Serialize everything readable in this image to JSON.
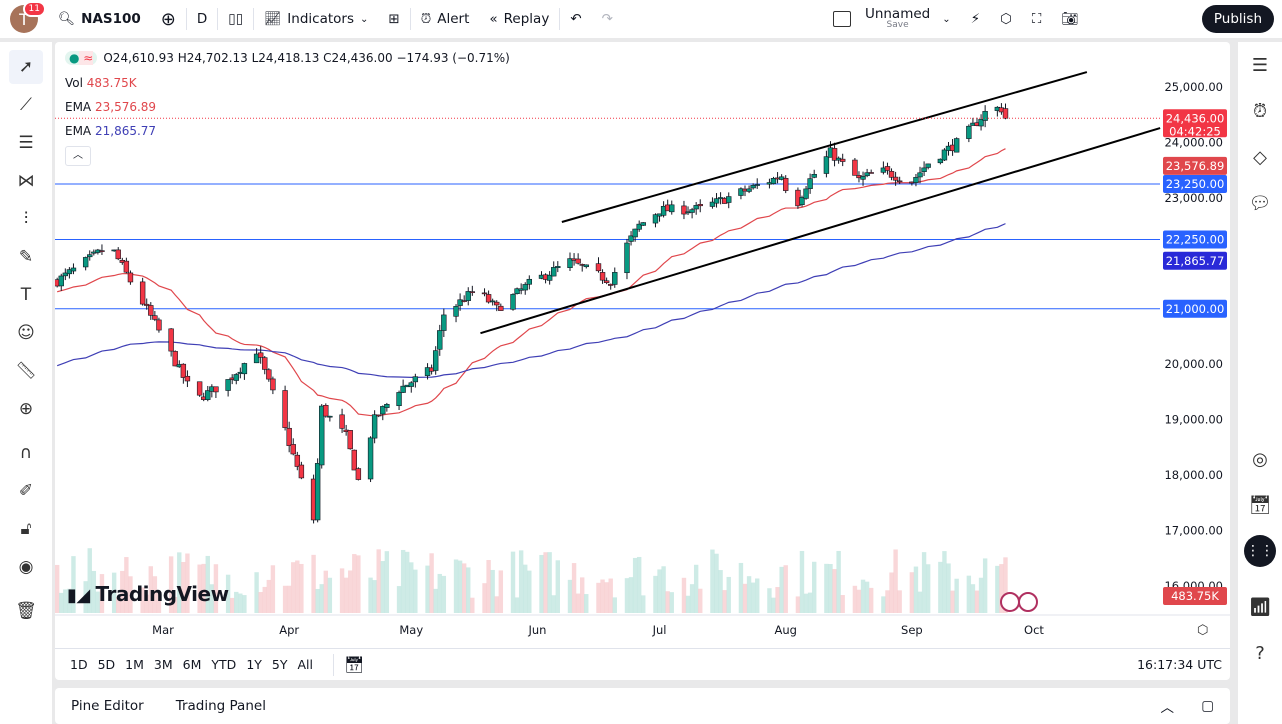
{
  "topbar": {
    "avatar_letter": "T",
    "notifications": "11",
    "symbol": "NAS100",
    "interval": "D",
    "indicators": "Indicators",
    "alert": "Alert",
    "replay": "Replay",
    "layout_name": "Unnamed",
    "layout_save": "Save",
    "publish": "Publish"
  },
  "legend": {
    "ohlc": "O24,610.93 H24,702.13 L24,418.13 C24,436.00 −174.93 (−0.71%)",
    "vol_label": "Vol",
    "vol_value": "483.75K",
    "ema1_label": "EMA",
    "ema1_value": "23,576.89",
    "ema2_label": "EMA",
    "ema2_value": "21,865.77"
  },
  "price_axis": {
    "ticks": [
      "25,000.00",
      "24,000.00",
      "23,000.00",
      "20,000.00",
      "19,000.00",
      "18,000.00",
      "17,000.00",
      "16,000.00"
    ],
    "labels": {
      "last_price": "24,436.00",
      "countdown": "04:42:25",
      "ema1": "23,576.89",
      "line1": "23,250.00",
      "line2": "22,250.00",
      "ema2": "21,865.77",
      "line3": "21,000.00",
      "volume": "483.75K"
    }
  },
  "time_axis": {
    "ticks": [
      "Mar",
      "Apr",
      "May",
      "Jun",
      "Jul",
      "Aug",
      "Sep",
      "Oct"
    ]
  },
  "range_bar": {
    "ranges": [
      "1D",
      "5D",
      "1M",
      "3M",
      "6M",
      "YTD",
      "1Y",
      "5Y",
      "All"
    ],
    "clock": "16:17:34 UTC"
  },
  "bottom_panel": {
    "pine_editor": "Pine Editor",
    "trading_panel": "Trading Panel"
  },
  "watermark": "TradingView",
  "colors": {
    "up": "#089981",
    "down": "#f23645",
    "ema1": "#e0474c",
    "ema2": "#3f3fb5",
    "hline": "#2962ff"
  },
  "chart_data": {
    "type": "candlestick",
    "price_range": [
      16000,
      25000
    ],
    "close_path": [
      [
        "2025-02-03",
        21500
      ],
      [
        "2025-02-16",
        22150
      ],
      [
        "2025-02-21",
        21500
      ],
      [
        "2025-02-28",
        20600
      ],
      [
        "2025-03-09",
        19350
      ],
      [
        "2025-03-17",
        19700
      ],
      [
        "2025-03-24",
        20250
      ],
      [
        "2025-03-29",
        19270
      ],
      [
        "2025-04-04",
        17900
      ],
      [
        "2025-04-07",
        17200
      ],
      [
        "2025-04-09",
        19200
      ],
      [
        "2025-04-15",
        18700
      ],
      [
        "2025-04-18",
        17900
      ],
      [
        "2025-04-22",
        19000
      ],
      [
        "2025-04-28",
        19550
      ],
      [
        "2025-05-06",
        19900
      ],
      [
        "2025-05-09",
        20900
      ],
      [
        "2025-05-17",
        21350
      ],
      [
        "2025-05-22",
        21000
      ],
      [
        "2025-05-30",
        21450
      ],
      [
        "2025-06-09",
        21850
      ],
      [
        "2025-06-19",
        21500
      ],
      [
        "2025-06-23",
        22150
      ],
      [
        "2025-06-26",
        22500
      ],
      [
        "2025-07-01",
        22780
      ],
      [
        "2025-07-11",
        22800
      ],
      [
        "2025-07-21",
        23100
      ],
      [
        "2025-07-31",
        23400
      ],
      [
        "2025-08-03",
        22780
      ],
      [
        "2025-08-06",
        23230
      ],
      [
        "2025-08-12",
        23820
      ],
      [
        "2025-08-19",
        23320
      ],
      [
        "2025-08-24",
        23500
      ],
      [
        "2025-09-01",
        23300
      ],
      [
        "2025-09-05",
        23630
      ],
      [
        "2025-09-13",
        24040
      ],
      [
        "2025-09-20",
        24620
      ],
      [
        "2025-09-23",
        24611
      ]
    ],
    "last_candle": {
      "open": 24610.93,
      "high": 24702.13,
      "low": 24418.13,
      "close": 24436.0
    },
    "horizontal_lines": [
      23250,
      22250,
      21000
    ],
    "trendlines": [
      [
        [
          "2025-06-07",
          22565
        ],
        [
          "2025-10-14",
          25270
        ]
      ],
      [
        [
          "2025-05-18",
          20560
        ],
        [
          "2025-11-01",
          24260
        ]
      ]
    ],
    "ema_values": [
      23576.89,
      21865.77
    ]
  }
}
